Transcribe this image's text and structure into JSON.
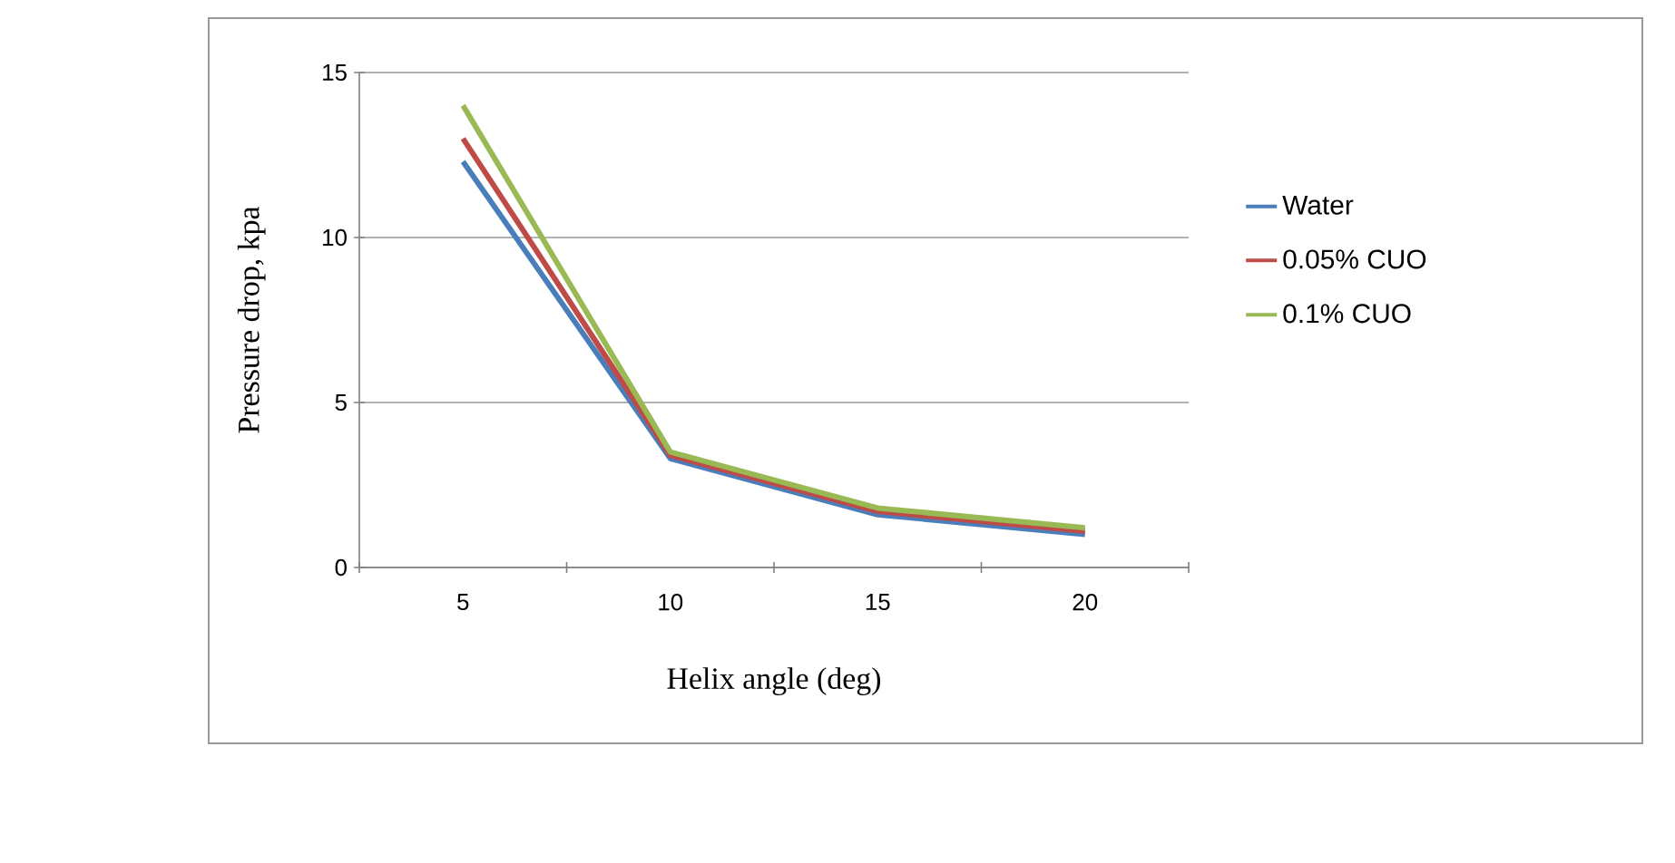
{
  "chart_data": {
    "type": "line",
    "xlabel": "Helix angle (deg)",
    "ylabel": "Pressure drop, kpa",
    "categories": [
      "5",
      "10",
      "15",
      "20"
    ],
    "series": [
      {
        "name": "Water",
        "color": "#4a7ebb",
        "values": [
          12.3,
          3.3,
          1.6,
          1.0
        ]
      },
      {
        "name": "0.05% CUO",
        "color": "#be4b48",
        "values": [
          13.0,
          3.4,
          1.7,
          1.1
        ]
      },
      {
        "name": "0.1% CUO",
        "color": "#98b954",
        "values": [
          14.0,
          3.5,
          1.8,
          1.2
        ]
      }
    ],
    "ylim": [
      0,
      15
    ],
    "yticks": [
      0,
      5,
      10,
      15
    ],
    "grid": "y",
    "legend": "right",
    "marker": "none",
    "line_style": "solid"
  }
}
